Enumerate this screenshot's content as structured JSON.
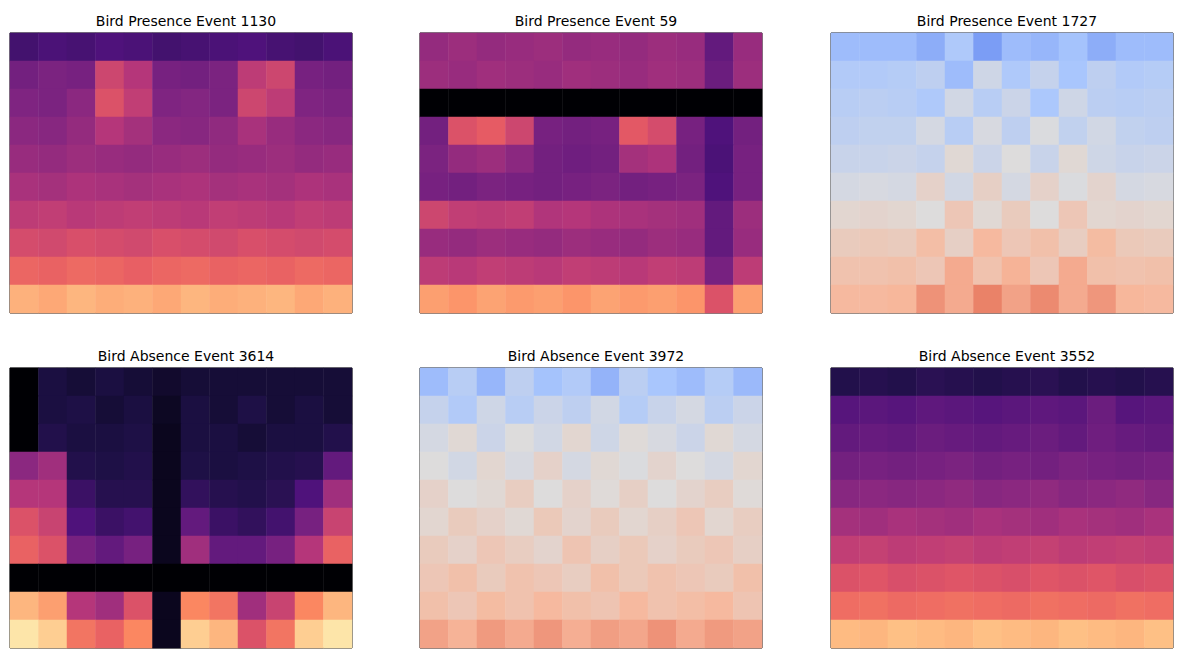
{
  "chart_data": [
    {
      "type": "heatmap",
      "title": "Bird Presence Event 1130",
      "color": "magma",
      "tick_labels": false,
      "zlim": [
        0,
        1
      ],
      "cells": [
        [
          0.22,
          0.24,
          0.23,
          0.25,
          0.24,
          0.22,
          0.23,
          0.24,
          0.25,
          0.23,
          0.22,
          0.24
        ],
        [
          0.34,
          0.36,
          0.35,
          0.56,
          0.5,
          0.35,
          0.34,
          0.36,
          0.52,
          0.56,
          0.35,
          0.34
        ],
        [
          0.37,
          0.36,
          0.4,
          0.6,
          0.53,
          0.37,
          0.38,
          0.36,
          0.56,
          0.52,
          0.37,
          0.36
        ],
        [
          0.4,
          0.39,
          0.42,
          0.5,
          0.46,
          0.4,
          0.39,
          0.41,
          0.47,
          0.43,
          0.4,
          0.39
        ],
        [
          0.43,
          0.42,
          0.44,
          0.43,
          0.42,
          0.43,
          0.44,
          0.42,
          0.43,
          0.44,
          0.42,
          0.43
        ],
        [
          0.47,
          0.46,
          0.48,
          0.47,
          0.46,
          0.47,
          0.48,
          0.46,
          0.47,
          0.46,
          0.48,
          0.47
        ],
        [
          0.52,
          0.53,
          0.51,
          0.52,
          0.53,
          0.52,
          0.51,
          0.53,
          0.52,
          0.51,
          0.53,
          0.52
        ],
        [
          0.58,
          0.57,
          0.59,
          0.58,
          0.57,
          0.59,
          0.58,
          0.57,
          0.59,
          0.58,
          0.57,
          0.58
        ],
        [
          0.66,
          0.65,
          0.67,
          0.66,
          0.64,
          0.66,
          0.67,
          0.65,
          0.66,
          0.65,
          0.67,
          0.66
        ],
        [
          0.84,
          0.82,
          0.85,
          0.83,
          0.84,
          0.82,
          0.85,
          0.83,
          0.84,
          0.85,
          0.82,
          0.84
        ]
      ]
    },
    {
      "type": "heatmap",
      "title": "Bird Presence Event 59",
      "color": "magma",
      "tick_labels": false,
      "zlim": [
        0,
        1
      ],
      "cells": [
        [
          0.42,
          0.44,
          0.42,
          0.43,
          0.44,
          0.42,
          0.43,
          0.42,
          0.44,
          0.43,
          0.3,
          0.43
        ],
        [
          0.44,
          0.43,
          0.45,
          0.44,
          0.43,
          0.45,
          0.44,
          0.43,
          0.45,
          0.44,
          0.32,
          0.44
        ],
        [
          0,
          0,
          0,
          0,
          0,
          0,
          0,
          0,
          0,
          0,
          0,
          0
        ],
        [
          0.34,
          0.6,
          0.63,
          0.56,
          0.35,
          0.34,
          0.35,
          0.62,
          0.58,
          0.35,
          0.25,
          0.34
        ],
        [
          0.36,
          0.42,
          0.44,
          0.4,
          0.34,
          0.33,
          0.34,
          0.46,
          0.48,
          0.34,
          0.24,
          0.35
        ],
        [
          0.35,
          0.34,
          0.36,
          0.35,
          0.34,
          0.35,
          0.36,
          0.34,
          0.35,
          0.36,
          0.25,
          0.35
        ],
        [
          0.56,
          0.53,
          0.52,
          0.53,
          0.49,
          0.5,
          0.48,
          0.47,
          0.46,
          0.45,
          0.3,
          0.44
        ],
        [
          0.43,
          0.42,
          0.44,
          0.43,
          0.42,
          0.44,
          0.43,
          0.42,
          0.44,
          0.43,
          0.3,
          0.43
        ],
        [
          0.52,
          0.51,
          0.53,
          0.52,
          0.51,
          0.53,
          0.52,
          0.51,
          0.53,
          0.52,
          0.35,
          0.52
        ],
        [
          0.8,
          0.78,
          0.81,
          0.79,
          0.8,
          0.78,
          0.81,
          0.79,
          0.8,
          0.78,
          0.6,
          0.8
        ]
      ]
    },
    {
      "type": "heatmap",
      "title": "Bird Presence Event 1727",
      "color": "coolwarm",
      "tick_labels": false,
      "zlim": [
        0,
        1
      ],
      "cells": [
        [
          0.3,
          0.3,
          0.3,
          0.25,
          0.35,
          0.2,
          0.3,
          0.28,
          0.32,
          0.25,
          0.3,
          0.3
        ],
        [
          0.36,
          0.36,
          0.37,
          0.4,
          0.3,
          0.45,
          0.35,
          0.42,
          0.33,
          0.4,
          0.36,
          0.37
        ],
        [
          0.38,
          0.39,
          0.38,
          0.35,
          0.46,
          0.38,
          0.44,
          0.34,
          0.45,
          0.39,
          0.38,
          0.39
        ],
        [
          0.4,
          0.41,
          0.41,
          0.47,
          0.38,
          0.48,
          0.4,
          0.49,
          0.41,
          0.46,
          0.41,
          0.4
        ],
        [
          0.43,
          0.43,
          0.44,
          0.42,
          0.52,
          0.44,
          0.5,
          0.43,
          0.52,
          0.45,
          0.43,
          0.44
        ],
        [
          0.47,
          0.48,
          0.47,
          0.55,
          0.46,
          0.56,
          0.47,
          0.55,
          0.49,
          0.54,
          0.47,
          0.48
        ],
        [
          0.53,
          0.54,
          0.53,
          0.5,
          0.6,
          0.52,
          0.58,
          0.5,
          0.6,
          0.53,
          0.54,
          0.53
        ],
        [
          0.58,
          0.59,
          0.58,
          0.64,
          0.56,
          0.66,
          0.6,
          0.63,
          0.57,
          0.65,
          0.59,
          0.58
        ],
        [
          0.62,
          0.62,
          0.63,
          0.6,
          0.7,
          0.62,
          0.68,
          0.6,
          0.7,
          0.63,
          0.62,
          0.63
        ],
        [
          0.66,
          0.66,
          0.67,
          0.76,
          0.7,
          0.8,
          0.72,
          0.78,
          0.7,
          0.75,
          0.67,
          0.66
        ]
      ]
    },
    {
      "type": "heatmap",
      "title": "Bird Absence Event 3614",
      "color": "magma",
      "tick_labels": false,
      "zlim": [
        0,
        1
      ],
      "cells": [
        [
          0,
          0.12,
          0.1,
          0.12,
          0.1,
          0.08,
          0.1,
          0.1,
          0.1,
          0.1,
          0.1,
          0.1
        ],
        [
          0,
          0.12,
          0.13,
          0.1,
          0.12,
          0.06,
          0.12,
          0.1,
          0.13,
          0.1,
          0.12,
          0.1
        ],
        [
          0,
          0.14,
          0.12,
          0.12,
          0.13,
          0.05,
          0.12,
          0.12,
          0.1,
          0.12,
          0.12,
          0.14
        ],
        [
          0.4,
          0.45,
          0.14,
          0.13,
          0.14,
          0.05,
          0.13,
          0.12,
          0.13,
          0.14,
          0.15,
          0.3
        ],
        [
          0.5,
          0.5,
          0.2,
          0.15,
          0.15,
          0.05,
          0.18,
          0.15,
          0.14,
          0.16,
          0.25,
          0.45
        ],
        [
          0.6,
          0.55,
          0.25,
          0.2,
          0.22,
          0.05,
          0.3,
          0.2,
          0.18,
          0.22,
          0.35,
          0.55
        ],
        [
          0.65,
          0.6,
          0.35,
          0.3,
          0.35,
          0.05,
          0.45,
          0.3,
          0.3,
          0.35,
          0.5,
          0.65
        ],
        [
          0,
          0,
          0,
          0,
          0,
          0,
          0,
          0,
          0,
          0,
          0,
          0
        ],
        [
          0.85,
          0.8,
          0.5,
          0.45,
          0.6,
          0.05,
          0.75,
          0.7,
          0.45,
          0.55,
          0.75,
          0.85
        ],
        [
          0.95,
          0.9,
          0.7,
          0.65,
          0.75,
          0.05,
          0.9,
          0.85,
          0.6,
          0.7,
          0.9,
          0.95
        ]
      ]
    },
    {
      "type": "heatmap",
      "title": "Bird Absence Event 3972",
      "color": "coolwarm",
      "tick_labels": false,
      "zlim": [
        0,
        1
      ],
      "cells": [
        [
          0.3,
          0.38,
          0.28,
          0.4,
          0.32,
          0.36,
          0.27,
          0.39,
          0.33,
          0.3,
          0.37,
          0.29
        ],
        [
          0.42,
          0.36,
          0.45,
          0.38,
          0.44,
          0.4,
          0.46,
          0.37,
          0.43,
          0.47,
          0.39,
          0.44
        ],
        [
          0.47,
          0.52,
          0.44,
          0.5,
          0.46,
          0.53,
          0.45,
          0.51,
          0.48,
          0.44,
          0.52,
          0.47
        ],
        [
          0.5,
          0.46,
          0.53,
          0.48,
          0.55,
          0.47,
          0.52,
          0.49,
          0.54,
          0.5,
          0.47,
          0.53
        ],
        [
          0.55,
          0.5,
          0.52,
          0.57,
          0.5,
          0.55,
          0.51,
          0.56,
          0.5,
          0.54,
          0.57,
          0.51
        ],
        [
          0.53,
          0.58,
          0.55,
          0.52,
          0.59,
          0.54,
          0.58,
          0.53,
          0.56,
          0.6,
          0.53,
          0.57
        ],
        [
          0.58,
          0.55,
          0.6,
          0.57,
          0.54,
          0.61,
          0.56,
          0.59,
          0.55,
          0.58,
          0.6,
          0.56
        ],
        [
          0.6,
          0.63,
          0.58,
          0.62,
          0.6,
          0.57,
          0.63,
          0.59,
          0.62,
          0.6,
          0.58,
          0.63
        ],
        [
          0.63,
          0.6,
          0.65,
          0.62,
          0.66,
          0.63,
          0.61,
          0.66,
          0.62,
          0.64,
          0.66,
          0.61
        ],
        [
          0.72,
          0.68,
          0.74,
          0.7,
          0.75,
          0.69,
          0.73,
          0.71,
          0.76,
          0.7,
          0.74,
          0.72
        ]
      ]
    },
    {
      "type": "heatmap",
      "title": "Bird Absence Event 3552",
      "color": "magma",
      "tick_labels": false,
      "zlim": [
        0,
        1
      ],
      "cells": [
        [
          0.14,
          0.15,
          0.14,
          0.16,
          0.15,
          0.14,
          0.15,
          0.16,
          0.14,
          0.15,
          0.14,
          0.15
        ],
        [
          0.27,
          0.28,
          0.27,
          0.29,
          0.28,
          0.27,
          0.28,
          0.29,
          0.28,
          0.32,
          0.27,
          0.28
        ],
        [
          0.3,
          0.31,
          0.3,
          0.32,
          0.31,
          0.3,
          0.31,
          0.32,
          0.3,
          0.33,
          0.31,
          0.3
        ],
        [
          0.34,
          0.35,
          0.34,
          0.35,
          0.36,
          0.34,
          0.35,
          0.34,
          0.36,
          0.35,
          0.34,
          0.35
        ],
        [
          0.39,
          0.4,
          0.39,
          0.4,
          0.41,
          0.39,
          0.4,
          0.41,
          0.39,
          0.4,
          0.41,
          0.39
        ],
        [
          0.46,
          0.45,
          0.47,
          0.46,
          0.45,
          0.47,
          0.46,
          0.45,
          0.47,
          0.46,
          0.45,
          0.47
        ],
        [
          0.53,
          0.54,
          0.52,
          0.53,
          0.54,
          0.52,
          0.53,
          0.54,
          0.52,
          0.53,
          0.54,
          0.53
        ],
        [
          0.6,
          0.61,
          0.59,
          0.6,
          0.61,
          0.6,
          0.59,
          0.61,
          0.6,
          0.61,
          0.59,
          0.6
        ],
        [
          0.68,
          0.69,
          0.67,
          0.68,
          0.69,
          0.68,
          0.67,
          0.69,
          0.68,
          0.67,
          0.69,
          0.68
        ],
        [
          0.86,
          0.85,
          0.87,
          0.86,
          0.85,
          0.87,
          0.86,
          0.85,
          0.87,
          0.86,
          0.85,
          0.87
        ]
      ]
    }
  ]
}
